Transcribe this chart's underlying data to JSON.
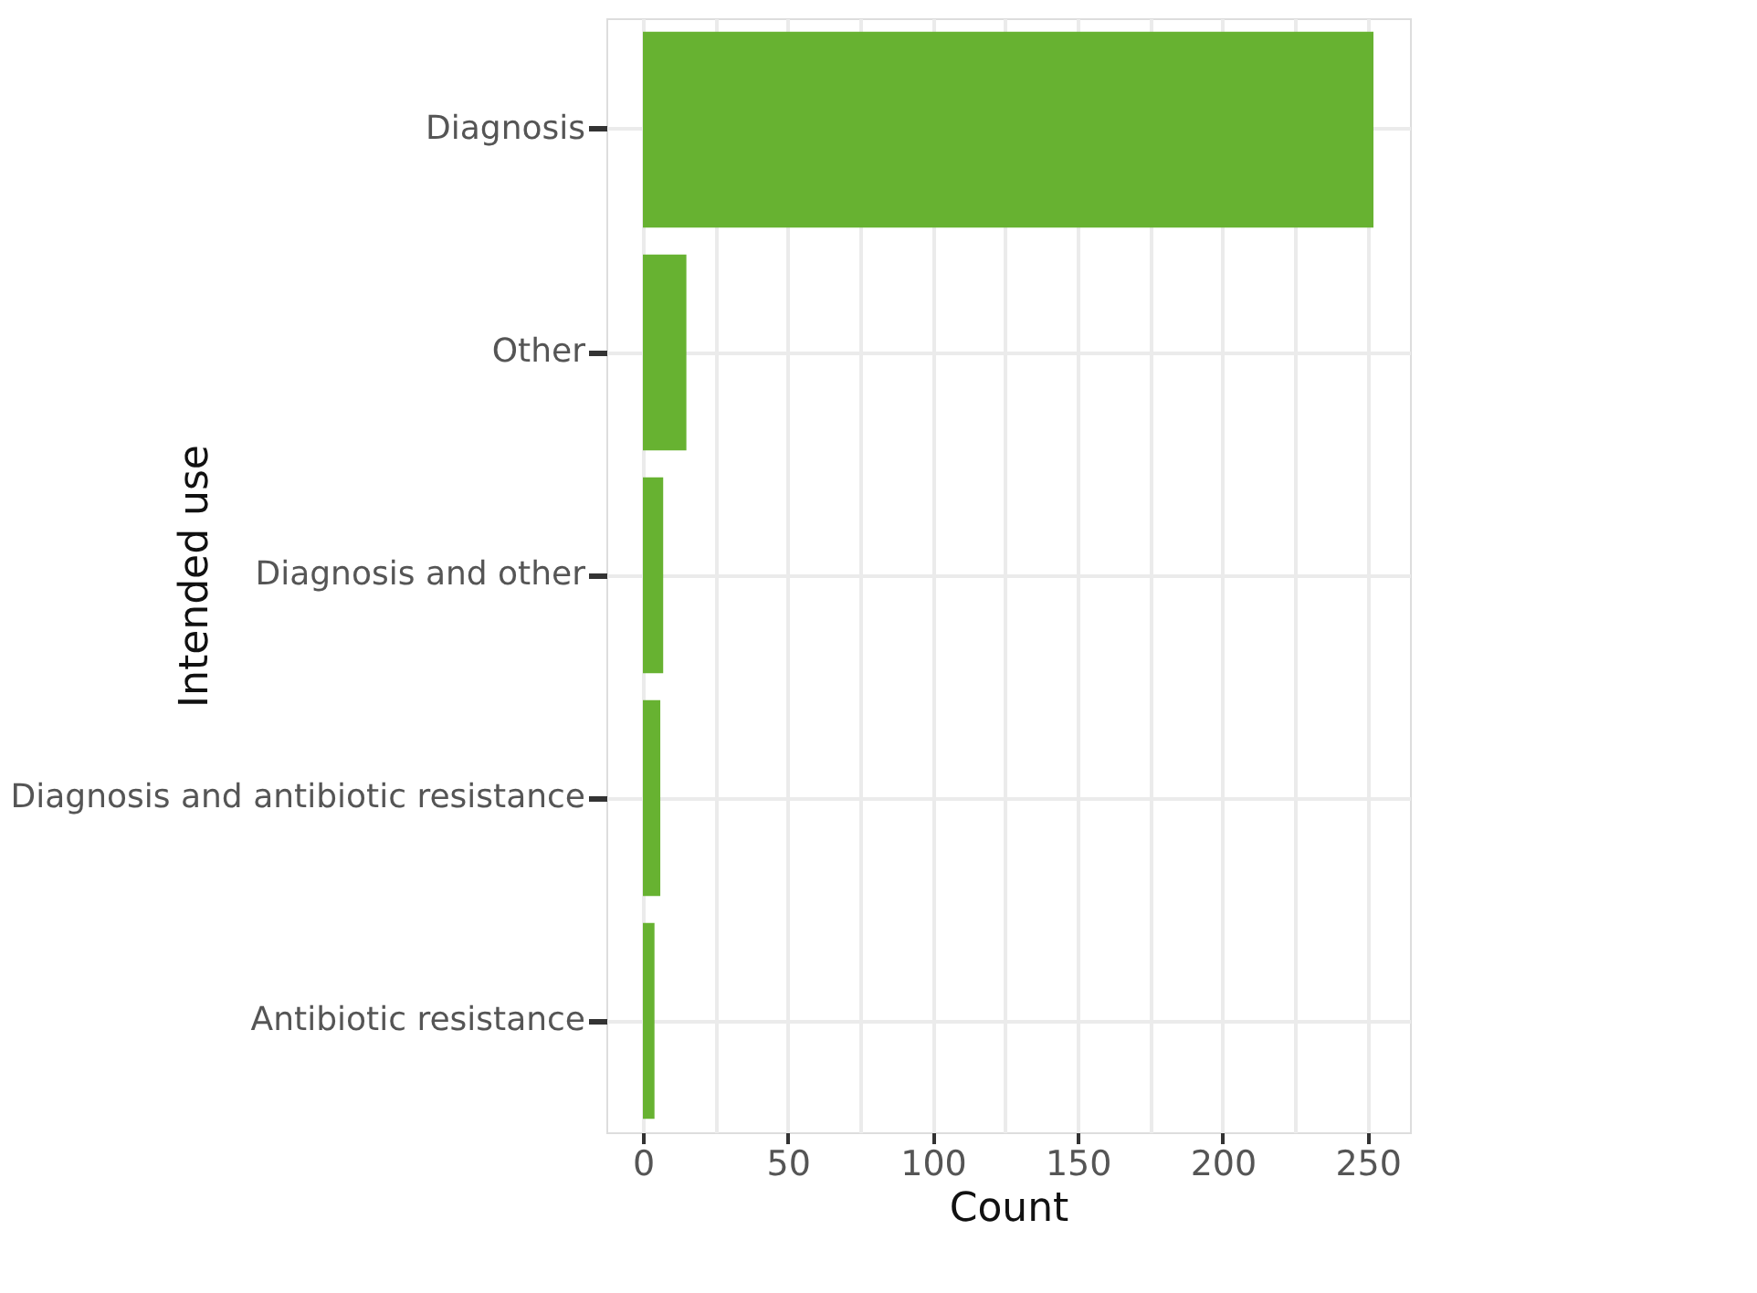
{
  "chart_data": {
    "type": "bar",
    "orientation": "horizontal",
    "xlabel": "Count",
    "ylabel": "Intended use",
    "categories": [
      "Diagnosis",
      "Other",
      "Diagnosis and other",
      "Diagnosis and antibiotic resistance",
      "Antibiotic resistance"
    ],
    "values": [
      252,
      15,
      7,
      6,
      4
    ],
    "color": "#67b231",
    "xlim": [
      -12.6,
      264.6
    ],
    "xticks": [
      0,
      {
        "value": 25,
        "label": null
      },
      50,
      {
        "value": 75,
        "label": null
      },
      100,
      {
        "value": 125,
        "label": null
      },
      150,
      {
        "value": 175,
        "label": null
      },
      200,
      {
        "value": 225,
        "label": null
      },
      250
    ],
    "grid": true
  }
}
